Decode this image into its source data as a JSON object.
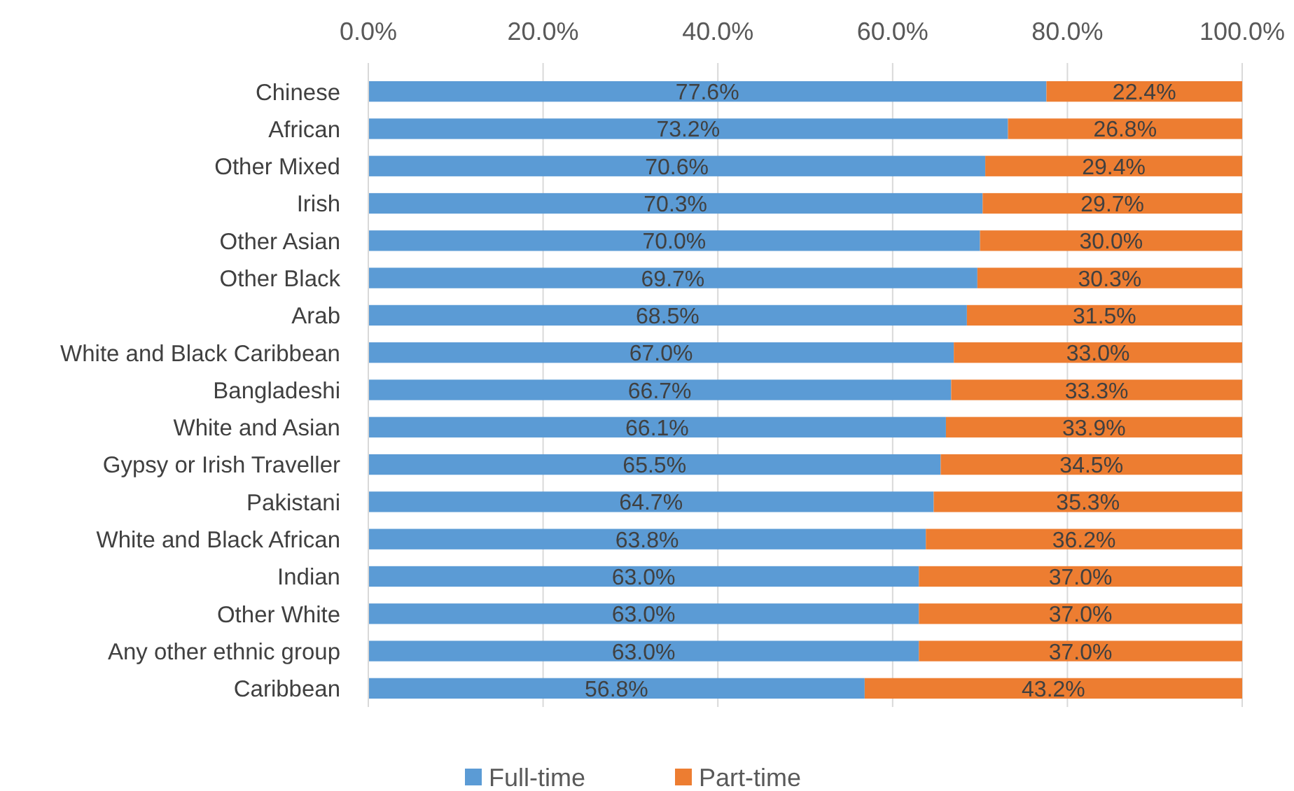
{
  "chart_data": {
    "type": "bar",
    "orientation": "horizontal",
    "stacked": true,
    "categories": [
      "Chinese",
      "African",
      "Other Mixed",
      "Irish",
      "Other Asian",
      "Other Black",
      "Arab",
      "White and Black Caribbean",
      "Bangladeshi",
      "White and Asian",
      "Gypsy or Irish Traveller",
      "Pakistani",
      "White and Black African",
      "Indian",
      "Other White",
      "Any other ethnic group",
      "Caribbean"
    ],
    "series": [
      {
        "name": "Full-time",
        "color": "#5b9bd5",
        "values": [
          77.6,
          73.2,
          70.6,
          70.3,
          70.0,
          69.7,
          68.5,
          67.0,
          66.7,
          66.1,
          65.5,
          64.7,
          63.8,
          63.0,
          63.0,
          63.0,
          56.8
        ],
        "value_labels": [
          "77.6%",
          "73.2%",
          "70.6%",
          "70.3%",
          "70.0%",
          "69.7%",
          "68.5%",
          "67.0%",
          "66.7%",
          "66.1%",
          "65.5%",
          "64.7%",
          "63.8%",
          "63.0%",
          "63.0%",
          "63.0%",
          "56.8%"
        ]
      },
      {
        "name": "Part-time",
        "color": "#ed7d31",
        "values": [
          22.4,
          26.8,
          29.4,
          29.7,
          30.0,
          30.3,
          31.5,
          33.0,
          33.3,
          33.9,
          34.5,
          35.3,
          36.2,
          37.0,
          37.0,
          37.0,
          43.2
        ],
        "value_labels": [
          "22.4%",
          "26.8%",
          "29.4%",
          "29.7%",
          "30.0%",
          "30.3%",
          "31.5%",
          "33.0%",
          "33.3%",
          "33.9%",
          "34.5%",
          "35.3%",
          "36.2%",
          "37.0%",
          "37.0%",
          "37.0%",
          "43.2%"
        ]
      }
    ],
    "xlim": [
      0,
      100
    ],
    "xticks": [
      {
        "value": 0,
        "label": "0.0%"
      },
      {
        "value": 20,
        "label": "20.0%"
      },
      {
        "value": 40,
        "label": "40.0%"
      },
      {
        "value": 60,
        "label": "60.0%"
      },
      {
        "value": 80,
        "label": "80.0%"
      },
      {
        "value": 100,
        "label": "100.0%"
      }
    ],
    "grid": "x",
    "legend": "bottom"
  }
}
